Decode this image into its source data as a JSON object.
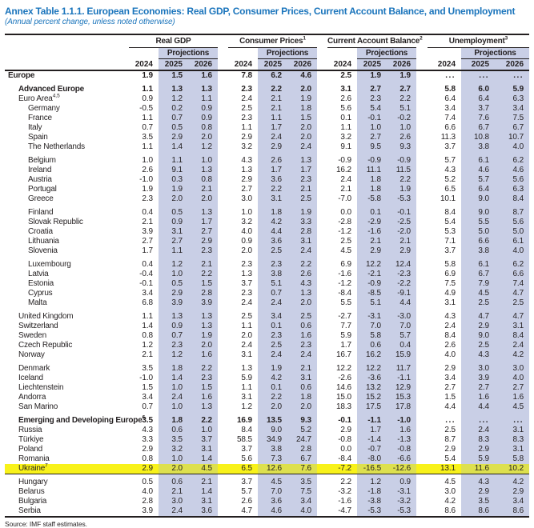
{
  "title": "Annex Table 1.1.1. European Economies: Real GDP, Consumer Prices, Current Account Balance, and Unemployment",
  "subtitle": "(Annual percent change, unless noted otherwise)",
  "source": "Source: IMF staff estimates.",
  "colors": {
    "accent": "#1b75bc",
    "ink": "#231f20",
    "shade": "#c9cfe6",
    "hl": "#f8f21a",
    "hlshade": "#dde04e"
  },
  "header": {
    "groups": [
      {
        "label": "Real GDP",
        "sup": ""
      },
      {
        "label": "Consumer Prices",
        "sup": "1"
      },
      {
        "label": "Current Account Balance",
        "sup": "2"
      },
      {
        "label": "Unemployment",
        "sup": "3"
      }
    ],
    "projections_label": "Projections",
    "years": [
      "2024",
      "2025",
      "2026"
    ]
  },
  "rows": [
    {
      "label": "Europe",
      "indent": 0,
      "bold": true,
      "values": [
        "1.9",
        "1.5",
        "1.6",
        "7.8",
        "6.2",
        "4.6",
        "2.5",
        "1.9",
        "1.9",
        "...",
        "...",
        "..."
      ]
    },
    {
      "label": "Advanced Europe",
      "indent": 1,
      "bold": true,
      "gap_before": true,
      "values": [
        "1.1",
        "1.3",
        "1.3",
        "2.3",
        "2.2",
        "2.0",
        "3.1",
        "2.7",
        "2.7",
        "5.8",
        "6.0",
        "5.9"
      ]
    },
    {
      "label": "Euro Area",
      "sup": "4,5",
      "indent": 1,
      "values": [
        "0.9",
        "1.2",
        "1.1",
        "2.4",
        "2.1",
        "1.9",
        "2.6",
        "2.3",
        "2.2",
        "6.4",
        "6.4",
        "6.3"
      ]
    },
    {
      "label": "Germany",
      "indent": 2,
      "values": [
        "-0.5",
        "0.2",
        "0.9",
        "2.5",
        "2.1",
        "1.8",
        "5.6",
        "5.4",
        "5.1",
        "3.4",
        "3.7",
        "3.4"
      ]
    },
    {
      "label": "France",
      "indent": 2,
      "values": [
        "1.1",
        "0.7",
        "0.9",
        "2.3",
        "1.1",
        "1.5",
        "0.1",
        "-0.1",
        "-0.2",
        "7.4",
        "7.6",
        "7.5"
      ]
    },
    {
      "label": "Italy",
      "indent": 2,
      "values": [
        "0.7",
        "0.5",
        "0.8",
        "1.1",
        "1.7",
        "2.0",
        "1.1",
        "1.0",
        "1.0",
        "6.6",
        "6.7",
        "6.7"
      ]
    },
    {
      "label": "Spain",
      "indent": 2,
      "values": [
        "3.5",
        "2.9",
        "2.0",
        "2.9",
        "2.4",
        "2.0",
        "3.2",
        "2.7",
        "2.6",
        "11.3",
        "10.8",
        "10.7"
      ]
    },
    {
      "label": "The Netherlands",
      "indent": 2,
      "values": [
        "1.1",
        "1.4",
        "1.2",
        "3.2",
        "2.9",
        "2.4",
        "9.1",
        "9.5",
        "9.3",
        "3.7",
        "3.8",
        "4.0"
      ]
    },
    {
      "label": "Belgium",
      "indent": 2,
      "gap_before": true,
      "values": [
        "1.0",
        "1.1",
        "1.0",
        "4.3",
        "2.6",
        "1.3",
        "-0.9",
        "-0.9",
        "-0.9",
        "5.7",
        "6.1",
        "6.2"
      ]
    },
    {
      "label": "Ireland",
      "indent": 2,
      "values": [
        "2.6",
        "9.1",
        "1.3",
        "1.3",
        "1.7",
        "1.7",
        "16.2",
        "11.1",
        "11.5",
        "4.3",
        "4.6",
        "4.6"
      ]
    },
    {
      "label": "Austria",
      "indent": 2,
      "values": [
        "-1.0",
        "0.3",
        "0.8",
        "2.9",
        "3.6",
        "2.3",
        "2.4",
        "1.8",
        "2.2",
        "5.2",
        "5.7",
        "5.6"
      ]
    },
    {
      "label": "Portugal",
      "indent": 2,
      "values": [
        "1.9",
        "1.9",
        "2.1",
        "2.7",
        "2.2",
        "2.1",
        "2.1",
        "1.8",
        "1.9",
        "6.5",
        "6.4",
        "6.3"
      ]
    },
    {
      "label": "Greece",
      "indent": 2,
      "values": [
        "2.3",
        "2.0",
        "2.0",
        "3.0",
        "3.1",
        "2.5",
        "-7.0",
        "-5.8",
        "-5.3",
        "10.1",
        "9.0",
        "8.4"
      ]
    },
    {
      "label": "Finland",
      "indent": 2,
      "gap_before": true,
      "values": [
        "0.4",
        "0.5",
        "1.3",
        "1.0",
        "1.8",
        "1.9",
        "0.0",
        "0.1",
        "-0.1",
        "8.4",
        "9.0",
        "8.7"
      ]
    },
    {
      "label": "Slovak Republic",
      "indent": 2,
      "values": [
        "2.1",
        "0.9",
        "1.7",
        "3.2",
        "4.2",
        "3.3",
        "-2.8",
        "-2.9",
        "-2.5",
        "5.4",
        "5.5",
        "5.6"
      ]
    },
    {
      "label": "Croatia",
      "indent": 2,
      "values": [
        "3.9",
        "3.1",
        "2.7",
        "4.0",
        "4.4",
        "2.8",
        "-1.2",
        "-1.6",
        "-2.0",
        "5.3",
        "5.0",
        "5.0"
      ]
    },
    {
      "label": "Lithuania",
      "indent": 2,
      "values": [
        "2.7",
        "2.7",
        "2.9",
        "0.9",
        "3.6",
        "3.1",
        "2.5",
        "2.1",
        "2.1",
        "7.1",
        "6.6",
        "6.1"
      ]
    },
    {
      "label": "Slovenia",
      "indent": 2,
      "values": [
        "1.7",
        "1.1",
        "2.3",
        "2.0",
        "2.5",
        "2.4",
        "4.5",
        "2.9",
        "2.9",
        "3.7",
        "3.8",
        "4.0"
      ]
    },
    {
      "label": "Luxembourg",
      "indent": 2,
      "gap_before": true,
      "values": [
        "0.4",
        "1.2",
        "2.1",
        "2.3",
        "2.3",
        "2.2",
        "6.9",
        "12.2",
        "12.4",
        "5.8",
        "6.1",
        "6.2"
      ]
    },
    {
      "label": "Latvia",
      "indent": 2,
      "values": [
        "-0.4",
        "1.0",
        "2.2",
        "1.3",
        "3.8",
        "2.6",
        "-1.6",
        "-2.1",
        "-2.3",
        "6.9",
        "6.7",
        "6.6"
      ]
    },
    {
      "label": "Estonia",
      "indent": 2,
      "values": [
        "-0.1",
        "0.5",
        "1.5",
        "3.7",
        "5.1",
        "4.3",
        "-1.2",
        "-0.9",
        "-2.2",
        "7.5",
        "7.9",
        "7.4"
      ]
    },
    {
      "label": "Cyprus",
      "indent": 2,
      "values": [
        "3.4",
        "2.9",
        "2.8",
        "2.3",
        "0.7",
        "1.3",
        "-8.4",
        "-8.5",
        "-9.1",
        "4.9",
        "4.5",
        "4.7"
      ]
    },
    {
      "label": "Malta",
      "indent": 2,
      "values": [
        "6.8",
        "3.9",
        "3.9",
        "2.4",
        "2.4",
        "2.0",
        "5.5",
        "5.1",
        "4.4",
        "3.1",
        "2.5",
        "2.5"
      ]
    },
    {
      "label": "United Kingdom",
      "indent": 1,
      "gap_before": true,
      "values": [
        "1.1",
        "1.3",
        "1.3",
        "2.5",
        "3.4",
        "2.5",
        "-2.7",
        "-3.1",
        "-3.0",
        "4.3",
        "4.7",
        "4.7"
      ]
    },
    {
      "label": "Switzerland",
      "indent": 1,
      "values": [
        "1.4",
        "0.9",
        "1.3",
        "1.1",
        "0.1",
        "0.6",
        "7.7",
        "7.0",
        "7.0",
        "2.4",
        "2.9",
        "3.1"
      ]
    },
    {
      "label": "Sweden",
      "indent": 1,
      "values": [
        "0.8",
        "0.7",
        "1.9",
        "2.0",
        "2.3",
        "1.6",
        "5.9",
        "5.8",
        "5.7",
        "8.4",
        "9.0",
        "8.4"
      ]
    },
    {
      "label": "Czech Republic",
      "indent": 1,
      "values": [
        "1.2",
        "2.3",
        "2.0",
        "2.4",
        "2.5",
        "2.3",
        "1.7",
        "0.6",
        "0.4",
        "2.6",
        "2.5",
        "2.4"
      ]
    },
    {
      "label": "Norway",
      "indent": 1,
      "values": [
        "2.1",
        "1.2",
        "1.6",
        "3.1",
        "2.4",
        "2.4",
        "16.7",
        "16.2",
        "15.9",
        "4.0",
        "4.3",
        "4.2"
      ]
    },
    {
      "label": "Denmark",
      "indent": 1,
      "gap_before": true,
      "values": [
        "3.5",
        "1.8",
        "2.2",
        "1.3",
        "1.9",
        "2.1",
        "12.2",
        "12.2",
        "11.7",
        "2.9",
        "3.0",
        "3.0"
      ]
    },
    {
      "label": "Iceland",
      "indent": 1,
      "values": [
        "-1.0",
        "1.4",
        "2.3",
        "5.9",
        "4.2",
        "3.1",
        "-2.6",
        "-3.6",
        "-1.1",
        "3.4",
        "3.9",
        "4.0"
      ]
    },
    {
      "label": "Liechtenstein",
      "indent": 1,
      "values": [
        "1.5",
        "1.0",
        "1.5",
        "1.1",
        "0.1",
        "0.6",
        "14.6",
        "13.2",
        "12.9",
        "2.7",
        "2.7",
        "2.7"
      ]
    },
    {
      "label": "Andorra",
      "indent": 1,
      "values": [
        "3.4",
        "2.4",
        "1.6",
        "3.1",
        "2.2",
        "1.8",
        "15.0",
        "15.2",
        "15.3",
        "1.5",
        "1.6",
        "1.6"
      ]
    },
    {
      "label": "San Marino",
      "indent": 1,
      "values": [
        "0.7",
        "1.0",
        "1.3",
        "1.2",
        "2.0",
        "2.0",
        "18.3",
        "17.5",
        "17.8",
        "4.4",
        "4.4",
        "4.5"
      ]
    },
    {
      "label": "Emerging and Developing Europe",
      "sup": "6",
      "indent": 1,
      "bold": true,
      "gap_before": true,
      "values": [
        "3.5",
        "1.8",
        "2.2",
        "16.9",
        "13.5",
        "9.3",
        "-0.1",
        "-1.1",
        "-1.0",
        "...",
        "...",
        "..."
      ]
    },
    {
      "label": "Russia",
      "indent": 1,
      "values": [
        "4.3",
        "0.6",
        "1.0",
        "8.4",
        "9.0",
        "5.2",
        "2.9",
        "1.7",
        "1.6",
        "2.5",
        "2.4",
        "3.1"
      ]
    },
    {
      "label": "Türkiye",
      "indent": 1,
      "values": [
        "3.3",
        "3.5",
        "3.7",
        "58.5",
        "34.9",
        "24.7",
        "-0.8",
        "-1.4",
        "-1.3",
        "8.7",
        "8.3",
        "8.3"
      ]
    },
    {
      "label": "Poland",
      "indent": 1,
      "values": [
        "2.9",
        "3.2",
        "3.1",
        "3.7",
        "3.8",
        "2.8",
        "0.0",
        "-0.7",
        "-0.8",
        "2.9",
        "2.9",
        "3.1"
      ]
    },
    {
      "label": "Romania",
      "indent": 1,
      "values": [
        "0.8",
        "1.0",
        "1.4",
        "5.6",
        "7.3",
        "6.7",
        "-8.4",
        "-8.0",
        "-6.6",
        "5.4",
        "5.9",
        "5.8"
      ]
    },
    {
      "label": "Ukraine",
      "sup": "7",
      "indent": 1,
      "highlight": true,
      "values": [
        "2.9",
        "2.0",
        "4.5",
        "6.5",
        "12.6",
        "7.6",
        "-7.2",
        "-16.5",
        "-12.6",
        "13.1",
        "11.6",
        "10.2"
      ]
    },
    {
      "label": "Hungary",
      "indent": 1,
      "gap_before": true,
      "rule_before": true,
      "values": [
        "0.5",
        "0.6",
        "2.1",
        "3.7",
        "4.5",
        "3.5",
        "2.2",
        "1.2",
        "0.9",
        "4.5",
        "4.3",
        "4.2"
      ]
    },
    {
      "label": "Belarus",
      "indent": 1,
      "values": [
        "4.0",
        "2.1",
        "1.4",
        "5.7",
        "7.0",
        "7.5",
        "-3.2",
        "-1.8",
        "-3.1",
        "3.0",
        "2.9",
        "2.9"
      ]
    },
    {
      "label": "Bulgaria",
      "indent": 1,
      "values": [
        "2.8",
        "3.0",
        "3.1",
        "2.6",
        "3.6",
        "3.4",
        "-1.6",
        "-3.8",
        "-3.2",
        "4.2",
        "3.5",
        "3.4"
      ]
    },
    {
      "label": "Serbia",
      "indent": 1,
      "values": [
        "3.9",
        "2.4",
        "3.6",
        "4.7",
        "4.6",
        "4.0",
        "-4.7",
        "-5.3",
        "-5.3",
        "8.6",
        "8.6",
        "8.6"
      ]
    }
  ]
}
